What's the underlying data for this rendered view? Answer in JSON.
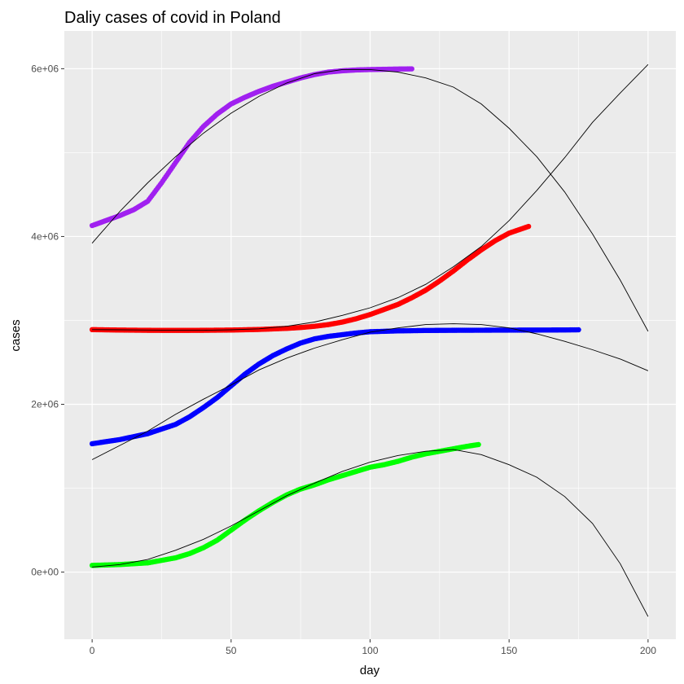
{
  "chart_data": {
    "type": "scatter",
    "title": "Daliy cases of covid in Poland",
    "xlabel": "day",
    "ylabel": "cases",
    "xlim": [
      -10,
      210
    ],
    "ylim": [
      -800000,
      6450000
    ],
    "xticks": [
      0,
      50,
      100,
      150,
      200
    ],
    "xtick_labels": [
      "0",
      "50",
      "100",
      "150",
      "200"
    ],
    "yticks": [
      0,
      2000000,
      4000000,
      6000000
    ],
    "ytick_labels": [
      "0e+00",
      "2e+06",
      "4e+06",
      "6e+06"
    ],
    "grid": true,
    "colors": {
      "panel_background": "#ebebeb",
      "grid_line": "#ffffff",
      "fit_line": "#000000",
      "purple": "#a020f0",
      "red": "#ff0000",
      "blue": "#0000ff",
      "green": "#00ff00"
    },
    "series": [
      {
        "color": "#a020f0",
        "x": [
          0,
          5,
          10,
          15,
          20,
          25,
          30,
          35,
          40,
          45,
          50,
          55,
          60,
          65,
          70,
          75,
          80,
          85,
          90,
          95,
          100,
          105,
          110,
          115
        ],
        "y": [
          4130000,
          4190000,
          4250000,
          4320000,
          4420000,
          4640000,
          4880000,
          5120000,
          5310000,
          5460000,
          5580000,
          5660000,
          5730000,
          5790000,
          5840000,
          5890000,
          5930000,
          5960000,
          5975000,
          5985000,
          5990000,
          5993000,
          5996000,
          5998000
        ],
        "fit_x": [
          0,
          10,
          20,
          30,
          40,
          50,
          60,
          70,
          80,
          90,
          100,
          110,
          120,
          130,
          140,
          150,
          160,
          170,
          180,
          190,
          200
        ],
        "fit_y": [
          3920000,
          4300000,
          4640000,
          4950000,
          5230000,
          5470000,
          5670000,
          5830000,
          5940000,
          5990000,
          5990000,
          5960000,
          5890000,
          5780000,
          5580000,
          5290000,
          4950000,
          4530000,
          4030000,
          3480000,
          2870000
        ]
      },
      {
        "color": "#ff0000",
        "x": [
          0,
          10,
          20,
          30,
          40,
          50,
          60,
          70,
          75,
          80,
          85,
          90,
          95,
          100,
          105,
          110,
          115,
          120,
          125,
          130,
          135,
          140,
          145,
          150,
          157
        ],
        "y": [
          2890000,
          2885000,
          2882000,
          2881000,
          2882000,
          2885000,
          2892000,
          2905000,
          2915000,
          2930000,
          2950000,
          2980000,
          3020000,
          3070000,
          3130000,
          3190000,
          3270000,
          3360000,
          3470000,
          3590000,
          3720000,
          3840000,
          3950000,
          4040000,
          4120000
        ],
        "fit_x": [
          0,
          10,
          20,
          30,
          40,
          50,
          60,
          70,
          80,
          90,
          100,
          110,
          120,
          130,
          140,
          150,
          160,
          170,
          180,
          190,
          200
        ],
        "fit_y": [
          2890000,
          2888000,
          2885000,
          2882000,
          2882000,
          2888000,
          2900000,
          2930000,
          2980000,
          3060000,
          3150000,
          3270000,
          3430000,
          3640000,
          3880000,
          4190000,
          4550000,
          4940000,
          5360000,
          5710000,
          6050000
        ]
      },
      {
        "color": "#0000ff",
        "x": [
          0,
          10,
          20,
          30,
          35,
          40,
          45,
          50,
          55,
          60,
          65,
          70,
          75,
          80,
          85,
          90,
          95,
          100,
          110,
          120,
          130,
          140,
          150,
          160,
          170,
          175
        ],
        "y": [
          1530000,
          1580000,
          1650000,
          1760000,
          1850000,
          1960000,
          2080000,
          2220000,
          2360000,
          2480000,
          2580000,
          2660000,
          2730000,
          2780000,
          2810000,
          2830000,
          2850000,
          2865000,
          2875000,
          2880000,
          2882000,
          2883000,
          2884000,
          2885000,
          2886000,
          2888000
        ],
        "fit_x": [
          0,
          10,
          20,
          30,
          40,
          50,
          60,
          70,
          80,
          90,
          100,
          110,
          120,
          130,
          140,
          150,
          160,
          170,
          180,
          190,
          200
        ],
        "fit_y": [
          1340000,
          1510000,
          1680000,
          1880000,
          2060000,
          2230000,
          2410000,
          2550000,
          2670000,
          2770000,
          2860000,
          2910000,
          2950000,
          2960000,
          2950000,
          2910000,
          2840000,
          2750000,
          2650000,
          2540000,
          2400000
        ]
      },
      {
        "color": "#00ff00",
        "x": [
          0,
          10,
          20,
          30,
          35,
          40,
          45,
          50,
          55,
          60,
          65,
          70,
          75,
          80,
          85,
          90,
          95,
          100,
          105,
          110,
          115,
          120,
          125,
          130,
          135,
          139
        ],
        "y": [
          80000,
          90000,
          110000,
          170000,
          220000,
          290000,
          380000,
          500000,
          620000,
          730000,
          830000,
          920000,
          990000,
          1040000,
          1100000,
          1150000,
          1200000,
          1250000,
          1280000,
          1320000,
          1370000,
          1410000,
          1440000,
          1470000,
          1500000,
          1520000
        ],
        "fit_x": [
          0,
          10,
          20,
          30,
          40,
          50,
          60,
          70,
          80,
          90,
          100,
          110,
          120,
          130,
          140,
          150,
          160,
          170,
          180,
          190,
          200
        ],
        "fit_y": [
          60000,
          90000,
          150000,
          260000,
          390000,
          550000,
          730000,
          910000,
          1060000,
          1200000,
          1310000,
          1390000,
          1440000,
          1460000,
          1400000,
          1280000,
          1130000,
          900000,
          580000,
          100000,
          -530000
        ]
      }
    ]
  }
}
